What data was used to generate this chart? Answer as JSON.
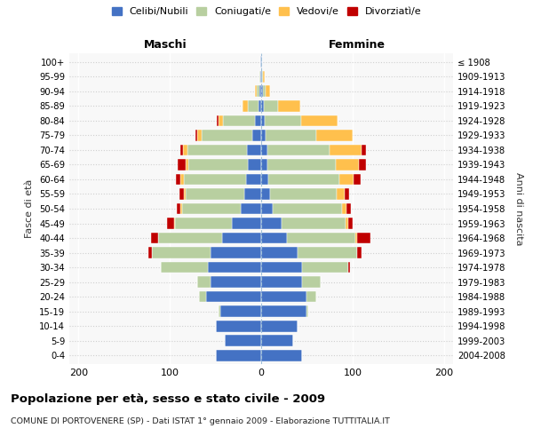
{
  "age_groups": [
    "0-4",
    "5-9",
    "10-14",
    "15-19",
    "20-24",
    "25-29",
    "30-34",
    "35-39",
    "40-44",
    "45-49",
    "50-54",
    "55-59",
    "60-64",
    "65-69",
    "70-74",
    "75-79",
    "80-84",
    "85-89",
    "90-94",
    "95-99",
    "100+"
  ],
  "birth_years": [
    "2004-2008",
    "1999-2003",
    "1994-1998",
    "1989-1993",
    "1984-1988",
    "1979-1983",
    "1974-1978",
    "1969-1973",
    "1964-1968",
    "1959-1963",
    "1954-1958",
    "1949-1953",
    "1944-1948",
    "1939-1943",
    "1934-1938",
    "1929-1933",
    "1924-1928",
    "1919-1923",
    "1914-1918",
    "1909-1913",
    "≤ 1908"
  ],
  "colors": {
    "celibe": "#4472C4",
    "coniugato": "#b8cfa0",
    "vedovo": "#ffc04d",
    "divorziato": "#c00000"
  },
  "maschi": {
    "celibe": [
      50,
      40,
      50,
      45,
      60,
      55,
      58,
      55,
      43,
      32,
      22,
      18,
      17,
      15,
      16,
      10,
      7,
      3,
      2,
      1,
      1
    ],
    "coniugato": [
      0,
      0,
      0,
      2,
      8,
      15,
      52,
      65,
      70,
      62,
      65,
      65,
      68,
      65,
      65,
      55,
      35,
      12,
      3,
      1,
      0
    ],
    "vedovo": [
      0,
      0,
      0,
      0,
      0,
      0,
      0,
      0,
      0,
      1,
      1,
      2,
      3,
      3,
      5,
      5,
      5,
      5,
      2,
      0,
      0
    ],
    "divorziato": [
      0,
      0,
      0,
      0,
      0,
      0,
      0,
      3,
      8,
      8,
      4,
      4,
      5,
      8,
      2,
      2,
      2,
      0,
      0,
      0,
      0
    ]
  },
  "femmine": {
    "nubile": [
      45,
      35,
      40,
      50,
      50,
      45,
      45,
      40,
      28,
      22,
      13,
      10,
      8,
      7,
      7,
      5,
      4,
      3,
      2,
      1,
      1
    ],
    "coniugata": [
      0,
      0,
      0,
      2,
      10,
      20,
      50,
      65,
      75,
      70,
      75,
      73,
      78,
      75,
      68,
      55,
      40,
      15,
      3,
      1,
      0
    ],
    "vedova": [
      0,
      0,
      0,
      0,
      0,
      0,
      0,
      0,
      2,
      3,
      5,
      8,
      15,
      25,
      35,
      40,
      40,
      25,
      5,
      2,
      0
    ],
    "divorziata": [
      0,
      0,
      0,
      0,
      0,
      0,
      2,
      5,
      15,
      5,
      5,
      5,
      8,
      8,
      5,
      0,
      0,
      0,
      0,
      0,
      0
    ]
  },
  "xlim": 210,
  "title": "Popolazione per età, sesso e stato civile - 2009",
  "subtitle": "COMUNE DI PORTOVENERE (SP) - Dati ISTAT 1° gennaio 2009 - Elaborazione TUTTITALIA.IT",
  "ylabel_left": "Fasce di età",
  "ylabel_right": "Anni di nascita",
  "xlabel_left": "Maschi",
  "xlabel_right": "Femmine"
}
